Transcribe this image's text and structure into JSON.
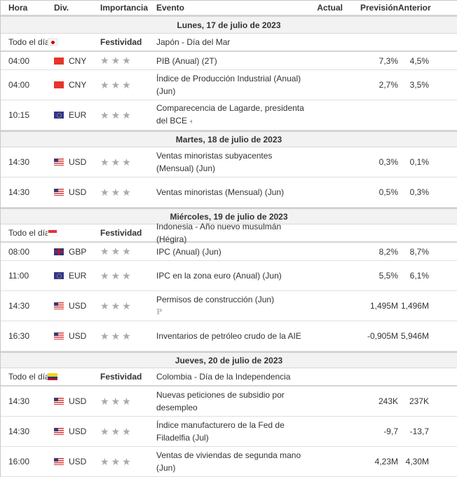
{
  "header": {
    "hora": "Hora",
    "div": "Div.",
    "importancia": "Importancia",
    "evento": "Evento",
    "actual": "Actual",
    "prevision": "Previsión",
    "anterior": "Anterior"
  },
  "icons": {
    "star": "★",
    "speaker": "🔈",
    "preliminary": "P"
  },
  "days": [
    {
      "label": "Lunes, 17 de julio de 2023",
      "rows": [
        {
          "time": "Todo el día",
          "flag": "jp",
          "currency": "",
          "importance": "Festividad",
          "event": "Japón - Día del Mar",
          "actual": "",
          "forecast": "",
          "previous": ""
        },
        {
          "time": "04:00",
          "flag": "cn",
          "currency": "CNY",
          "importance": "stars-3",
          "event": "PIB (Anual) (2T)",
          "actual": "",
          "forecast": "7,3%",
          "previous": "4,5%"
        },
        {
          "time": "04:00",
          "flag": "cn",
          "currency": "CNY",
          "importance": "stars-3",
          "event": "Índice de Producción Industrial (Anual) (Jun)",
          "actual": "",
          "forecast": "2,7%",
          "previous": "3,5%"
        },
        {
          "time": "10:15",
          "flag": "eu",
          "currency": "EUR",
          "importance": "stars-3",
          "event": "Comparecencia de Lagarde, presidenta del BCE",
          "actual": "",
          "forecast": "",
          "previous": "",
          "speech": true
        }
      ]
    },
    {
      "label": "Martes, 18 de julio de 2023",
      "rows": [
        {
          "time": "14:30",
          "flag": "us",
          "currency": "USD",
          "importance": "stars-3",
          "event": "Ventas minoristas subyacentes (Mensual) (Jun)",
          "actual": "",
          "forecast": "0,3%",
          "previous": "0,1%"
        },
        {
          "time": "14:30",
          "flag": "us",
          "currency": "USD",
          "importance": "stars-3",
          "event": "Ventas minoristas (Mensual) (Jun)",
          "actual": "",
          "forecast": "0,5%",
          "previous": "0,3%"
        }
      ]
    },
    {
      "label": "Miércoles, 19 de julio de 2023",
      "rows": [
        {
          "time": "Todo el día",
          "flag": "id",
          "currency": "",
          "importance": "Festividad",
          "event": "Indonesia - Año nuevo musulmán (Hégira)",
          "actual": "",
          "forecast": "",
          "previous": ""
        },
        {
          "time": "08:00",
          "flag": "gb",
          "currency": "GBP",
          "importance": "stars-3",
          "event": "IPC (Anual) (Jun)",
          "actual": "",
          "forecast": "8,2%",
          "previous": "8,7%"
        },
        {
          "time": "11:00",
          "flag": "eu",
          "currency": "EUR",
          "importance": "stars-3",
          "event": "IPC en la zona euro (Anual) (Jun)",
          "actual": "",
          "forecast": "5,5%",
          "previous": "6,1%"
        },
        {
          "time": "14:30",
          "flag": "us",
          "currency": "USD",
          "importance": "stars-3",
          "event": "Permisos de construcción (Jun)",
          "actual": "",
          "forecast": "1,495M",
          "previous": "1,496M",
          "preliminary": true
        },
        {
          "time": "16:30",
          "flag": "us",
          "currency": "USD",
          "importance": "stars-3",
          "event": "Inventarios de petróleo crudo de la AIE",
          "actual": "",
          "forecast": "-0,905M",
          "previous": "5,946M"
        }
      ]
    },
    {
      "label": "Jueves, 20 de julio de 2023",
      "rows": [
        {
          "time": "Todo el día",
          "flag": "co",
          "currency": "",
          "importance": "Festividad",
          "event": "Colombia - Día de la Independencia",
          "actual": "",
          "forecast": "",
          "previous": ""
        },
        {
          "time": "14:30",
          "flag": "us",
          "currency": "USD",
          "importance": "stars-3",
          "event": "Nuevas peticiones de subsidio por desempleo",
          "actual": "",
          "forecast": "243K",
          "previous": "237K"
        },
        {
          "time": "14:30",
          "flag": "us",
          "currency": "USD",
          "importance": "stars-3",
          "event": "Índice manufacturero de la Fed de Filadelfia (Jul)",
          "actual": "",
          "forecast": "-9,7",
          "previous": "-13,7"
        },
        {
          "time": "16:00",
          "flag": "us",
          "currency": "USD",
          "importance": "stars-3",
          "event": "Ventas de viviendas de segunda mano (Jun)",
          "actual": "",
          "forecast": "4,23M",
          "previous": "4,30M"
        }
      ]
    }
  ]
}
